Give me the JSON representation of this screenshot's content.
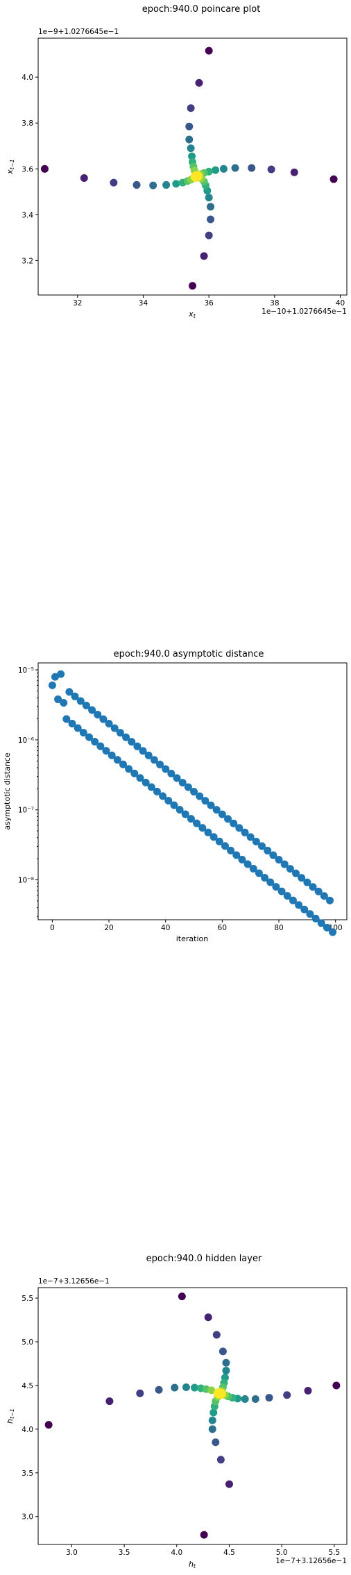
{
  "chart_data": [
    {
      "type": "scatter",
      "title": "epoch:940.0 poincare plot",
      "xlabel": "x_t",
      "ylabel": "x_{t-1}",
      "x_offset_text": "1e−10+1.0276645e−1",
      "y_offset_text": "1e−9+1.0276645e−1",
      "xlim": [
        30.8,
        40.2
      ],
      "ylim": [
        3.05,
        4.17
      ],
      "x_ticks": [
        32,
        34,
        36,
        38,
        40
      ],
      "y_ticks": [
        3.2,
        3.4,
        3.6,
        3.8,
        4.0
      ],
      "points": [
        [
          31.0,
          3.6
        ],
        [
          32.2,
          3.56
        ],
        [
          33.1,
          3.54
        ],
        [
          33.8,
          3.53
        ],
        [
          34.3,
          3.528
        ],
        [
          34.7,
          3.53
        ],
        [
          35.0,
          3.535
        ],
        [
          35.2,
          3.54
        ],
        [
          35.35,
          3.547
        ],
        [
          35.45,
          3.553
        ],
        [
          36.0,
          4.115
        ],
        [
          35.7,
          3.975
        ],
        [
          35.45,
          3.865
        ],
        [
          35.4,
          3.785
        ],
        [
          35.4,
          3.728
        ],
        [
          35.45,
          3.69
        ],
        [
          35.48,
          3.655
        ],
        [
          35.5,
          3.63
        ],
        [
          35.53,
          3.61
        ],
        [
          35.56,
          3.593
        ],
        [
          39.8,
          3.555
        ],
        [
          38.6,
          3.585
        ],
        [
          37.9,
          3.598
        ],
        [
          37.3,
          3.604
        ],
        [
          36.8,
          3.604
        ],
        [
          36.45,
          3.6
        ],
        [
          36.2,
          3.595
        ],
        [
          36.0,
          3.588
        ],
        [
          35.85,
          3.582
        ],
        [
          35.75,
          3.577
        ],
        [
          35.5,
          3.09
        ],
        [
          35.85,
          3.22
        ],
        [
          36.0,
          3.31
        ],
        [
          36.05,
          3.38
        ],
        [
          36.05,
          3.435
        ],
        [
          36.0,
          3.475
        ],
        [
          35.95,
          3.505
        ],
        [
          35.9,
          3.528
        ],
        [
          35.85,
          3.545
        ],
        [
          35.78,
          3.557
        ],
        [
          35.6,
          3.566
        ],
        [
          35.65,
          3.568
        ]
      ]
    },
    {
      "type": "scatter",
      "title": "epoch:940.0 asymptotic distance",
      "xlabel": "iteration",
      "ylabel": "asymptotic distance",
      "yscale": "log",
      "xlim": [
        -5,
        104
      ],
      "ylim_log10": [
        -8.57,
        -4.9
      ],
      "x_ticks": [
        0,
        20,
        40,
        60,
        80,
        100
      ],
      "y_tick_exponents": [
        -5,
        -6,
        -7,
        -8
      ],
      "y_tick_labels": [
        "10⁻⁵",
        "10⁻⁶",
        "10⁻⁷",
        "10⁻⁸"
      ],
      "log_start_even": -5.12,
      "log_start_odd": -5.54,
      "log_slope_per_iteration": -0.0324,
      "first_points": [
        [
          0,
          -5.22
        ],
        [
          1,
          -5.1
        ],
        [
          2,
          -5.42
        ],
        [
          3,
          -5.06
        ],
        [
          4,
          -5.47
        ]
      ],
      "n_iterations": 100
    },
    {
      "type": "scatter",
      "title": "epoch:940.0 hidden layer",
      "xlabel": "h_t",
      "ylabel": "h_{t-1}",
      "x_offset_text": "1e−7+3.12656e−1",
      "y_offset_text": "1e−7+3.12656e−1",
      "xlim": [
        2.68,
        5.62
      ],
      "ylim": [
        2.68,
        5.62
      ],
      "x_ticks": [
        3.0,
        3.5,
        4.0,
        4.5,
        5.0,
        5.5
      ],
      "y_ticks": [
        3.0,
        3.5,
        4.0,
        4.5,
        5.0,
        5.5
      ],
      "points": [
        [
          4.05,
          5.52
        ],
        [
          4.3,
          5.28
        ],
        [
          4.38,
          5.08
        ],
        [
          4.44,
          4.89
        ],
        [
          4.47,
          4.76
        ],
        [
          4.47,
          4.67
        ],
        [
          4.46,
          4.59
        ],
        [
          4.45,
          4.53
        ],
        [
          4.44,
          4.48
        ],
        [
          4.43,
          4.44
        ],
        [
          5.52,
          4.5
        ],
        [
          5.25,
          4.44
        ],
        [
          5.05,
          4.39
        ],
        [
          4.88,
          4.36
        ],
        [
          4.75,
          4.345
        ],
        [
          4.65,
          4.345
        ],
        [
          4.58,
          4.35
        ],
        [
          4.53,
          4.36
        ],
        [
          4.49,
          4.375
        ],
        [
          4.46,
          4.39
        ],
        [
          4.26,
          2.79
        ],
        [
          4.5,
          3.37
        ],
        [
          4.42,
          3.65
        ],
        [
          4.37,
          3.85
        ],
        [
          4.34,
          4.0
        ],
        [
          4.34,
          4.1
        ],
        [
          4.35,
          4.19
        ],
        [
          4.36,
          4.26
        ],
        [
          4.37,
          4.32
        ],
        [
          4.39,
          4.37
        ],
        [
          2.78,
          4.05
        ],
        [
          3.36,
          4.32
        ],
        [
          3.65,
          4.41
        ],
        [
          3.83,
          4.45
        ],
        [
          3.98,
          4.475
        ],
        [
          4.09,
          4.48
        ],
        [
          4.17,
          4.475
        ],
        [
          4.23,
          4.468
        ],
        [
          4.28,
          4.458
        ],
        [
          4.33,
          4.445
        ],
        [
          4.4,
          4.41
        ],
        [
          4.42,
          4.405
        ]
      ]
    }
  ]
}
